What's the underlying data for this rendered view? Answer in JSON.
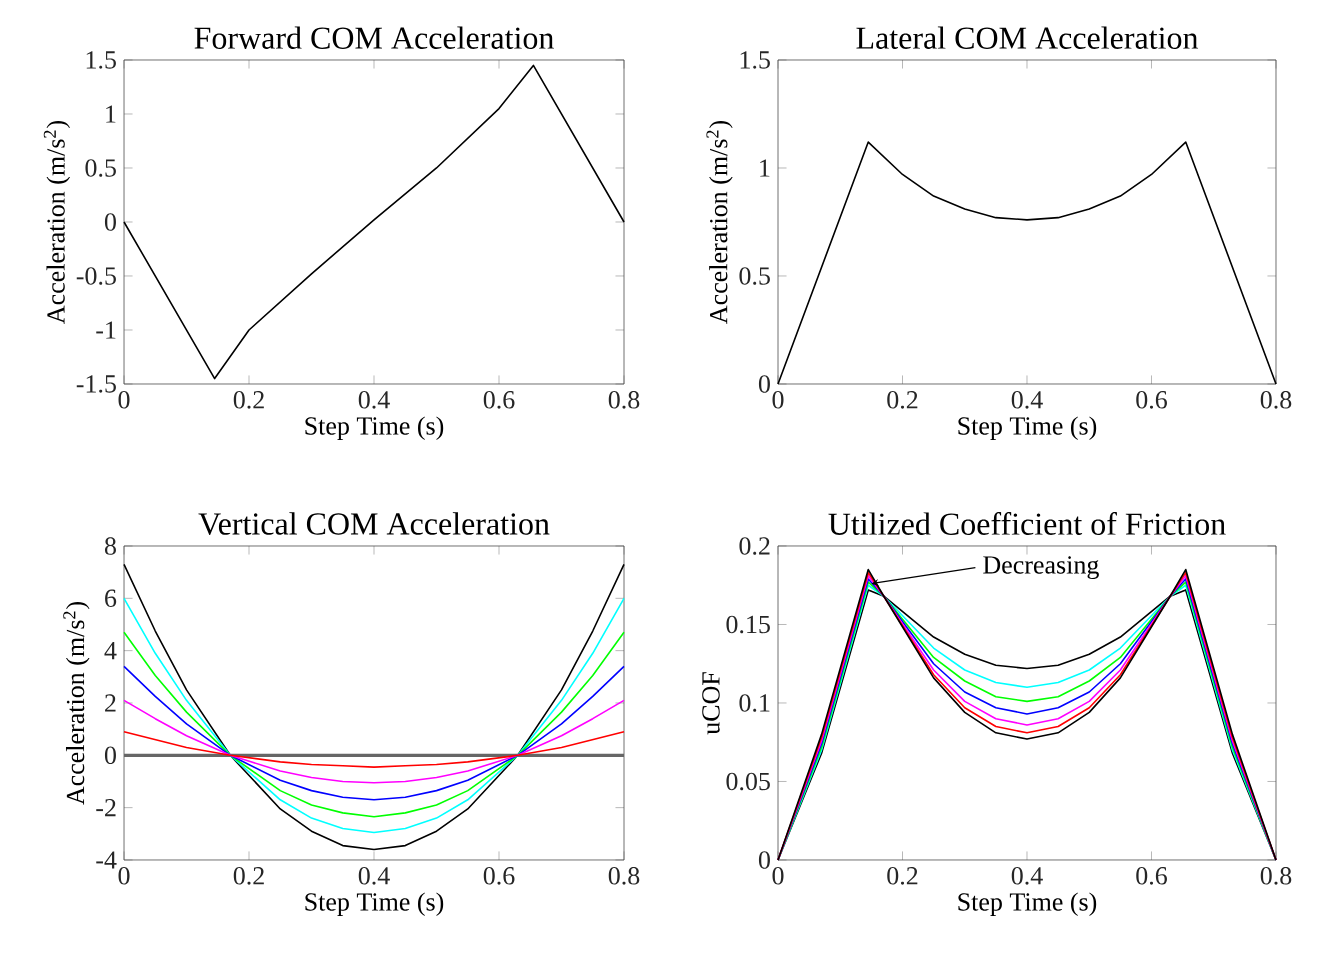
{
  "chart_data": [
    {
      "type": "line",
      "title": "Forward COM Acceleration",
      "xlabel": "Step Time (s)",
      "ylabel": "Acceleration (m/s$^{2}$)",
      "xlim": [
        0,
        0.8
      ],
      "ylim": [
        -1.5,
        1.5
      ],
      "xticks": [
        0,
        0.2,
        0.4,
        0.6,
        0.8
      ],
      "yticks": [
        -1.5,
        -1,
        -0.5,
        0,
        0.5,
        1,
        1.5
      ],
      "series": [
        {
          "color": "#000000",
          "x": [
            0,
            0.145,
            0.2,
            0.3,
            0.4,
            0.5,
            0.6,
            0.655,
            0.8
          ],
          "values": [
            0,
            -1.45,
            -1.0,
            -0.48,
            0.02,
            0.5,
            1.05,
            1.45,
            0
          ]
        }
      ]
    },
    {
      "type": "line",
      "title": "Lateral COM Acceleration",
      "xlabel": "Step Time (s)",
      "ylabel": "Acceleration (m/s$^{2}$)",
      "xlim": [
        0,
        0.8
      ],
      "ylim": [
        0,
        1.5
      ],
      "xticks": [
        0,
        0.2,
        0.4,
        0.6,
        0.8
      ],
      "yticks": [
        0,
        0.5,
        1,
        1.5
      ],
      "series": [
        {
          "color": "#000000",
          "x": [
            0,
            0.145,
            0.2,
            0.25,
            0.3,
            0.35,
            0.4,
            0.45,
            0.5,
            0.55,
            0.6,
            0.655,
            0.8
          ],
          "values": [
            0,
            1.12,
            0.97,
            0.87,
            0.81,
            0.77,
            0.76,
            0.77,
            0.81,
            0.87,
            0.97,
            1.12,
            0
          ]
        }
      ]
    },
    {
      "type": "line",
      "title": "Vertical COM Acceleration",
      "xlabel": "Step Time (s)",
      "ylabel": "Acceleration (m/s$^{2}$)",
      "xlim": [
        0,
        0.8
      ],
      "ylim": [
        -4,
        8
      ],
      "xticks": [
        0,
        0.2,
        0.4,
        0.6,
        0.8
      ],
      "yticks": [
        -4,
        -2,
        0,
        2,
        4,
        6,
        8
      ],
      "ref_lines": [
        {
          "axis": "y",
          "value": 0,
          "color": "#666666"
        }
      ],
      "series": [
        {
          "color": "#000000",
          "x": [
            0,
            0.05,
            0.1,
            0.17,
            0.25,
            0.3,
            0.35,
            0.4,
            0.45,
            0.5,
            0.55,
            0.63,
            0.7,
            0.75,
            0.8
          ],
          "values": [
            7.3,
            4.75,
            2.5,
            0,
            -2.05,
            -2.9,
            -3.45,
            -3.6,
            -3.45,
            -2.9,
            -2.05,
            0,
            2.5,
            4.75,
            7.3
          ]
        },
        {
          "color": "#00ffff",
          "x": [
            0,
            0.05,
            0.1,
            0.17,
            0.25,
            0.3,
            0.35,
            0.4,
            0.45,
            0.5,
            0.55,
            0.63,
            0.7,
            0.75,
            0.8
          ],
          "values": [
            6.0,
            3.9,
            2.1,
            0,
            -1.7,
            -2.4,
            -2.8,
            -2.95,
            -2.8,
            -2.4,
            -1.7,
            0,
            2.1,
            3.9,
            6.0
          ]
        },
        {
          "color": "#00ff00",
          "x": [
            0,
            0.05,
            0.1,
            0.17,
            0.25,
            0.3,
            0.35,
            0.4,
            0.45,
            0.5,
            0.55,
            0.63,
            0.7,
            0.75,
            0.8
          ],
          "values": [
            4.7,
            3.05,
            1.65,
            0,
            -1.35,
            -1.9,
            -2.2,
            -2.35,
            -2.2,
            -1.9,
            -1.35,
            0,
            1.65,
            3.05,
            4.7
          ]
        },
        {
          "color": "#0000ff",
          "x": [
            0,
            0.05,
            0.1,
            0.17,
            0.25,
            0.3,
            0.35,
            0.4,
            0.45,
            0.5,
            0.55,
            0.63,
            0.7,
            0.75,
            0.8
          ],
          "values": [
            3.4,
            2.25,
            1.2,
            0,
            -0.95,
            -1.35,
            -1.6,
            -1.7,
            -1.6,
            -1.35,
            -0.95,
            0,
            1.2,
            2.25,
            3.4
          ]
        },
        {
          "color": "#ff00ff",
          "x": [
            0,
            0.05,
            0.1,
            0.17,
            0.25,
            0.3,
            0.35,
            0.4,
            0.45,
            0.5,
            0.55,
            0.63,
            0.7,
            0.75,
            0.8
          ],
          "values": [
            2.1,
            1.4,
            0.75,
            0,
            -0.6,
            -0.85,
            -1.0,
            -1.05,
            -1.0,
            -0.85,
            -0.6,
            0,
            0.75,
            1.4,
            2.1
          ]
        },
        {
          "color": "#ff0000",
          "x": [
            0,
            0.05,
            0.1,
            0.17,
            0.25,
            0.3,
            0.35,
            0.4,
            0.45,
            0.5,
            0.55,
            0.63,
            0.7,
            0.75,
            0.8
          ],
          "values": [
            0.9,
            0.6,
            0.3,
            0,
            -0.25,
            -0.35,
            -0.4,
            -0.45,
            -0.4,
            -0.35,
            -0.25,
            0,
            0.3,
            0.6,
            0.9
          ]
        }
      ]
    },
    {
      "type": "line",
      "title": "Utilized Coefficient of Friction",
      "xlabel": "Step Time (s)",
      "ylabel": "uCOF",
      "xlim": [
        0,
        0.8
      ],
      "ylim": [
        0,
        0.2
      ],
      "xticks": [
        0,
        0.2,
        0.4,
        0.6,
        0.8
      ],
      "yticks": [
        0,
        0.05,
        0.1,
        0.15,
        0.2
      ],
      "annotations": [
        {
          "text": "Decreasing",
          "x": 0.15,
          "y": 0.176
        }
      ],
      "series": [
        {
          "color": "#000000",
          "x": [
            0,
            0.07,
            0.145,
            0.17,
            0.25,
            0.3,
            0.35,
            0.4,
            0.45,
            0.5,
            0.55,
            0.63,
            0.655,
            0.73,
            0.8
          ],
          "values": [
            0,
            0.068,
            0.172,
            0.168,
            0.142,
            0.131,
            0.124,
            0.122,
            0.124,
            0.131,
            0.142,
            0.168,
            0.172,
            0.068,
            0
          ]
        },
        {
          "color": "#00ffff",
          "x": [
            0,
            0.07,
            0.145,
            0.17,
            0.25,
            0.3,
            0.35,
            0.4,
            0.45,
            0.5,
            0.55,
            0.63,
            0.655,
            0.73,
            0.8
          ],
          "values": [
            0,
            0.07,
            0.175,
            0.168,
            0.135,
            0.121,
            0.113,
            0.11,
            0.113,
            0.121,
            0.135,
            0.168,
            0.175,
            0.07,
            0
          ]
        },
        {
          "color": "#00ff00",
          "x": [
            0,
            0.07,
            0.145,
            0.17,
            0.25,
            0.3,
            0.35,
            0.4,
            0.45,
            0.5,
            0.55,
            0.63,
            0.655,
            0.73,
            0.8
          ],
          "values": [
            0,
            0.072,
            0.177,
            0.168,
            0.129,
            0.114,
            0.104,
            0.101,
            0.104,
            0.114,
            0.129,
            0.168,
            0.177,
            0.072,
            0
          ]
        },
        {
          "color": "#0000ff",
          "x": [
            0,
            0.07,
            0.145,
            0.17,
            0.25,
            0.3,
            0.35,
            0.4,
            0.45,
            0.5,
            0.55,
            0.63,
            0.655,
            0.73,
            0.8
          ],
          "values": [
            0,
            0.074,
            0.179,
            0.168,
            0.125,
            0.107,
            0.097,
            0.093,
            0.097,
            0.107,
            0.125,
            0.168,
            0.179,
            0.074,
            0
          ]
        },
        {
          "color": "#ff00ff",
          "x": [
            0,
            0.07,
            0.145,
            0.17,
            0.25,
            0.3,
            0.35,
            0.4,
            0.45,
            0.5,
            0.55,
            0.63,
            0.655,
            0.73,
            0.8
          ],
          "values": [
            0,
            0.076,
            0.181,
            0.168,
            0.121,
            0.101,
            0.09,
            0.086,
            0.09,
            0.101,
            0.121,
            0.168,
            0.181,
            0.076,
            0
          ]
        },
        {
          "color": "#ff0000",
          "x": [
            0,
            0.07,
            0.145,
            0.17,
            0.25,
            0.3,
            0.35,
            0.4,
            0.45,
            0.5,
            0.55,
            0.63,
            0.655,
            0.73,
            0.8
          ],
          "values": [
            0,
            0.078,
            0.183,
            0.168,
            0.118,
            0.097,
            0.085,
            0.081,
            0.085,
            0.097,
            0.118,
            0.168,
            0.183,
            0.078,
            0
          ]
        },
        {
          "color": "#000000",
          "x": [
            0,
            0.07,
            0.145,
            0.17,
            0.25,
            0.3,
            0.35,
            0.4,
            0.45,
            0.5,
            0.55,
            0.63,
            0.655,
            0.73,
            0.8
          ],
          "values": [
            0,
            0.08,
            0.185,
            0.168,
            0.116,
            0.094,
            0.081,
            0.077,
            0.081,
            0.094,
            0.116,
            0.168,
            0.185,
            0.08,
            0
          ]
        }
      ]
    }
  ]
}
